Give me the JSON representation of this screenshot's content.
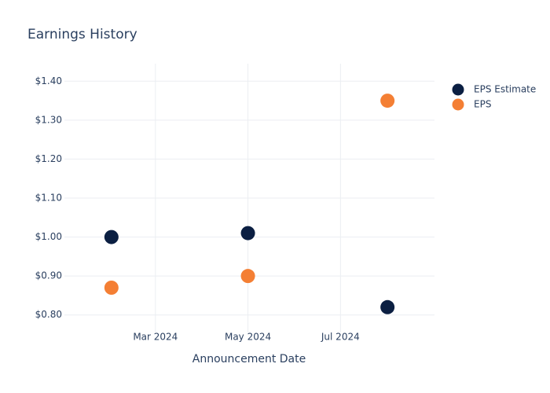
{
  "chart_data": {
    "type": "scatter",
    "title": "Earnings History",
    "x_label": "Announcement Date",
    "x": [
      "2024-02",
      "2024-05",
      "2024-08"
    ],
    "series": [
      {
        "name": "EPS Estimate",
        "color": "#0b1f42",
        "values": [
          1.0,
          1.01,
          0.82
        ]
      },
      {
        "name": "EPS",
        "color": "#f47f34",
        "values": [
          0.87,
          0.9,
          1.35
        ]
      }
    ],
    "xlim": [
      "2024-01",
      "2024-09"
    ],
    "xticks": [
      {
        "value": "2024-03",
        "label": "Mar 2024"
      },
      {
        "value": "2024-05",
        "label": "May 2024"
      },
      {
        "value": "2024-07",
        "label": "Jul 2024"
      }
    ],
    "ylim": [
      0.755,
      1.445
    ],
    "yticks": [
      {
        "value": 0.8,
        "label": "$0.80"
      },
      {
        "value": 0.9,
        "label": "$0.90"
      },
      {
        "value": 1.0,
        "label": "$1.00"
      },
      {
        "value": 1.1,
        "label": "$1.10"
      },
      {
        "value": 1.2,
        "label": "$1.20"
      },
      {
        "value": 1.3,
        "label": "$1.30"
      },
      {
        "value": 1.4,
        "label": "$1.40"
      }
    ],
    "grid": true,
    "legend": "top-right"
  }
}
